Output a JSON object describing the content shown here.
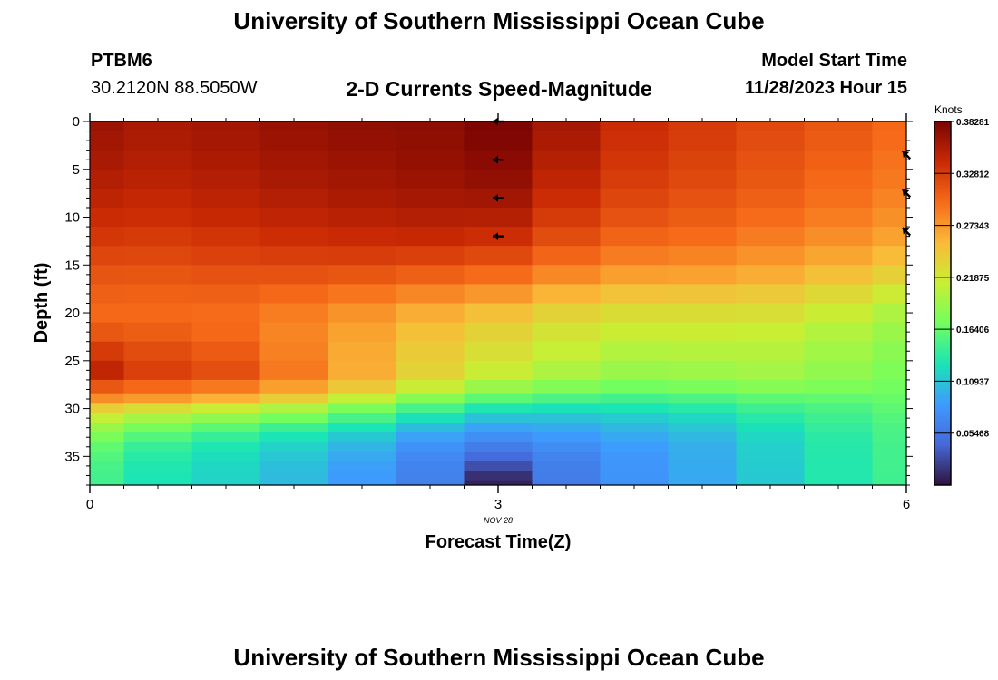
{
  "page": {
    "title": "University of Southern Mississippi Ocean Cube",
    "bottom_title": "University of Southern Mississippi Ocean Cube",
    "station_id": "PTBM6",
    "coordinates": "30.2120N  88.5050W",
    "plot_title": "2-D Currents Speed-Magnitude",
    "model_start_label": "Model Start Time",
    "model_start_value": "11/28/2023 Hour 15",
    "date_annotation": "NOV 28"
  },
  "colors": {
    "colormap": [
      "#30123b",
      "#4668d8",
      "#3e9bfe",
      "#1ae4b6",
      "#72fe5e",
      "#c8ef34",
      "#faba39",
      "#f66b19",
      "#ca2a04",
      "#7a0403"
    ]
  },
  "chart_data": {
    "type": "heatmap",
    "title": "2-D Currents Speed-Magnitude",
    "xlabel": "Forecast Time(Z)",
    "ylabel": "Depth (ft)",
    "x_ticks": [
      0,
      3,
      6
    ],
    "y_ticks": [
      0,
      5,
      10,
      15,
      20,
      25,
      30,
      35
    ],
    "xlim": [
      0,
      6
    ],
    "ylim": [
      0,
      38
    ],
    "y_inverted": true,
    "x": [
      0,
      0.5,
      1,
      1.5,
      2,
      2.5,
      3,
      3.5,
      4,
      4.5,
      5,
      5.5,
      6
    ],
    "depth": [
      0,
      2,
      4,
      6,
      8,
      10,
      12,
      14,
      16,
      18,
      20,
      22,
      24,
      26,
      28,
      29,
      30,
      31,
      32,
      33,
      34,
      35,
      36,
      37,
      38
    ],
    "speed": [
      [
        0.365,
        0.358,
        0.362,
        0.367,
        0.371,
        0.373,
        0.381,
        0.36,
        0.34,
        0.33,
        0.32,
        0.31,
        0.3
      ],
      [
        0.362,
        0.356,
        0.36,
        0.365,
        0.369,
        0.371,
        0.379,
        0.357,
        0.337,
        0.328,
        0.318,
        0.308,
        0.298
      ],
      [
        0.358,
        0.353,
        0.357,
        0.362,
        0.366,
        0.369,
        0.375,
        0.352,
        0.333,
        0.324,
        0.314,
        0.304,
        0.294
      ],
      [
        0.353,
        0.349,
        0.353,
        0.358,
        0.362,
        0.365,
        0.37,
        0.346,
        0.328,
        0.32,
        0.31,
        0.3,
        0.29
      ],
      [
        0.347,
        0.344,
        0.348,
        0.353,
        0.357,
        0.36,
        0.362,
        0.339,
        0.322,
        0.314,
        0.305,
        0.295,
        0.285
      ],
      [
        0.34,
        0.338,
        0.342,
        0.346,
        0.35,
        0.353,
        0.352,
        0.33,
        0.314,
        0.307,
        0.298,
        0.288,
        0.278
      ],
      [
        0.332,
        0.33,
        0.334,
        0.338,
        0.341,
        0.342,
        0.338,
        0.318,
        0.303,
        0.298,
        0.289,
        0.279,
        0.268
      ],
      [
        0.322,
        0.321,
        0.325,
        0.327,
        0.328,
        0.326,
        0.32,
        0.302,
        0.289,
        0.285,
        0.277,
        0.266,
        0.254
      ],
      [
        0.312,
        0.311,
        0.314,
        0.314,
        0.311,
        0.305,
        0.298,
        0.282,
        0.27,
        0.268,
        0.262,
        0.25,
        0.237
      ],
      [
        0.305,
        0.304,
        0.305,
        0.3,
        0.292,
        0.283,
        0.274,
        0.258,
        0.248,
        0.247,
        0.243,
        0.231,
        0.217
      ],
      [
        0.3,
        0.3,
        0.298,
        0.288,
        0.276,
        0.262,
        0.25,
        0.236,
        0.228,
        0.228,
        0.226,
        0.214,
        0.2
      ],
      [
        0.31,
        0.306,
        0.3,
        0.284,
        0.268,
        0.25,
        0.236,
        0.222,
        0.214,
        0.214,
        0.213,
        0.202,
        0.19
      ],
      [
        0.33,
        0.318,
        0.308,
        0.286,
        0.264,
        0.242,
        0.226,
        0.212,
        0.202,
        0.203,
        0.204,
        0.194,
        0.182
      ],
      [
        0.345,
        0.326,
        0.316,
        0.29,
        0.262,
        0.236,
        0.215,
        0.2,
        0.19,
        0.192,
        0.195,
        0.186,
        0.176
      ],
      [
        0.31,
        0.3,
        0.29,
        0.27,
        0.245,
        0.215,
        0.19,
        0.178,
        0.17,
        0.174,
        0.18,
        0.176,
        0.17
      ],
      [
        0.28,
        0.272,
        0.26,
        0.24,
        0.21,
        0.18,
        0.16,
        0.152,
        0.148,
        0.152,
        0.16,
        0.162,
        0.165
      ],
      [
        0.24,
        0.228,
        0.215,
        0.2,
        0.175,
        0.15,
        0.13,
        0.126,
        0.128,
        0.134,
        0.145,
        0.152,
        0.16
      ],
      [
        0.21,
        0.195,
        0.185,
        0.17,
        0.15,
        0.125,
        0.108,
        0.108,
        0.113,
        0.12,
        0.134,
        0.145,
        0.155
      ],
      [
        0.19,
        0.172,
        0.16,
        0.145,
        0.128,
        0.105,
        0.09,
        0.094,
        0.102,
        0.11,
        0.126,
        0.14,
        0.152
      ],
      [
        0.175,
        0.155,
        0.142,
        0.128,
        0.112,
        0.09,
        0.075,
        0.083,
        0.093,
        0.102,
        0.12,
        0.136,
        0.15
      ],
      [
        0.162,
        0.142,
        0.13,
        0.117,
        0.1,
        0.078,
        0.06,
        0.073,
        0.086,
        0.097,
        0.116,
        0.134,
        0.148
      ],
      [
        0.155,
        0.135,
        0.124,
        0.11,
        0.093,
        0.071,
        0.045,
        0.066,
        0.082,
        0.095,
        0.114,
        0.133,
        0.147
      ],
      [
        0.15,
        0.131,
        0.12,
        0.106,
        0.088,
        0.066,
        0.03,
        0.062,
        0.08,
        0.094,
        0.113,
        0.132,
        0.147
      ],
      [
        0.148,
        0.129,
        0.118,
        0.104,
        0.085,
        0.064,
        0.015,
        0.06,
        0.079,
        0.093,
        0.112,
        0.132,
        0.146
      ],
      [
        0.147,
        0.128,
        0.117,
        0.103,
        0.084,
        0.063,
        0.008,
        0.059,
        0.078,
        0.093,
        0.112,
        0.131,
        0.146
      ]
    ],
    "arrows": [
      {
        "x": 3,
        "depth": 0,
        "direction": "left"
      },
      {
        "x": 3,
        "depth": 4,
        "direction": "left"
      },
      {
        "x": 3,
        "depth": 8,
        "direction": "left"
      },
      {
        "x": 3,
        "depth": 12,
        "direction": "left"
      },
      {
        "x": 6,
        "depth": 3.5,
        "direction": "upper-left"
      },
      {
        "x": 6,
        "depth": 7.5,
        "direction": "upper-left"
      },
      {
        "x": 6,
        "depth": 11.5,
        "direction": "upper-left"
      }
    ],
    "colorbar": {
      "label": "Knots",
      "range": [
        0,
        0.38281
      ],
      "tick_labels": [
        "0.38281",
        "0.32812",
        "0.27343",
        "0.21875",
        "0.16406",
        "0.10937",
        "0.05468"
      ],
      "tick_values": [
        0.38281,
        0.32812,
        0.27343,
        0.21875,
        0.16406,
        0.10937,
        0.05468
      ]
    }
  }
}
